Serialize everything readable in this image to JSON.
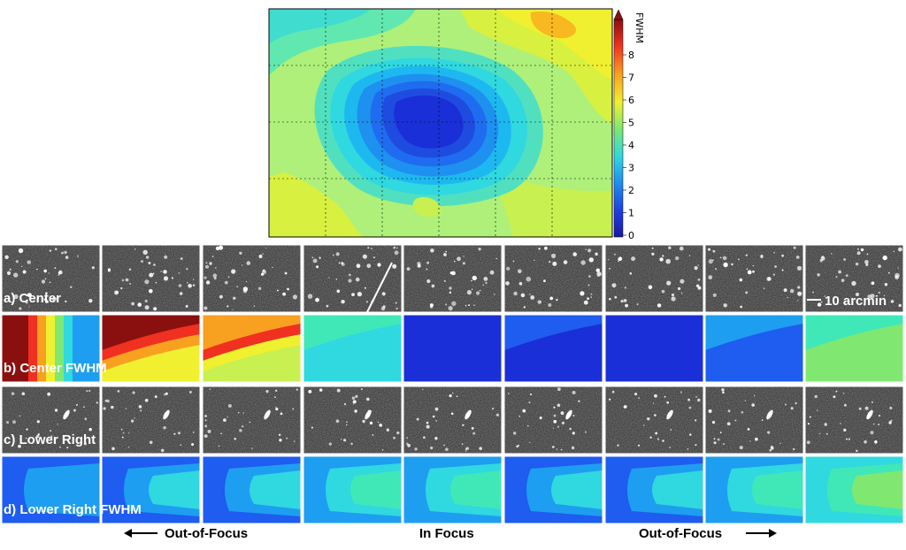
{
  "colorbar": {
    "title": "FWHM",
    "ticks": [
      "0",
      "1",
      "2",
      "3",
      "4",
      "5",
      "6",
      "7",
      "8"
    ]
  },
  "rows": [
    {
      "label": "a) Center",
      "kind": "image"
    },
    {
      "label": "b) Center FWHM",
      "kind": "map"
    },
    {
      "label": "c) Lower Right",
      "kind": "image"
    },
    {
      "label": "d) Lower Right FWHM",
      "kind": "map"
    }
  ],
  "scale_label": "10 arcmin",
  "focus_labels": {
    "left": "Out-of-Focus",
    "center": "In Focus",
    "right": "Out-of-Focus"
  },
  "colors": {
    "deep_blue": "#1a2fd8",
    "blue": "#1f5cf0",
    "light_blue": "#1e9ef0",
    "cyan": "#30d8e0",
    "aqua_green": "#40e8b8",
    "green": "#80e870",
    "yellow_green": "#c8f050",
    "yellow": "#f0f030",
    "orange": "#f8a020",
    "red": "#f03020",
    "dark_red": "#8a1010"
  }
}
